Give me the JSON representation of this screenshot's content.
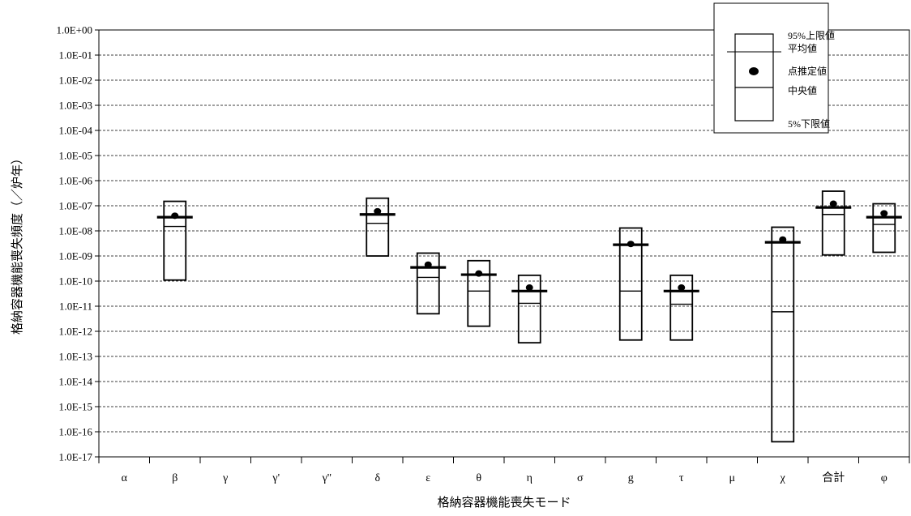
{
  "chart_data": {
    "type": "box",
    "xlabel": "格納容器機能喪失モード",
    "ylabel": "格納容器機能喪失頻度（／炉年）",
    "yscale": "log",
    "ylim": [
      1e-17,
      1
    ],
    "ytick_labels": [
      "1.0E+00",
      "1.0E-01",
      "1.0E-02",
      "1.0E-03",
      "1.0E-04",
      "1.0E-05",
      "1.0E-06",
      "1.0E-07",
      "1.0E-08",
      "1.0E-09",
      "1.0E-10",
      "1.0E-11",
      "1.0E-12",
      "1.0E-13",
      "1.0E-14",
      "1.0E-15",
      "1.0E-16",
      "1.0E-17"
    ],
    "grid": "horizontal-dashed",
    "legend_position": "top-right",
    "legend": {
      "upper": "95%上限値",
      "mean": "平均値",
      "point": "点推定値",
      "median": "中央値",
      "lower": "5%下限値"
    },
    "categories": [
      "α",
      "β",
      "γ",
      "γ'",
      "γ''",
      "δ",
      "ε",
      "θ",
      "η",
      "σ",
      "g",
      "τ",
      "μ",
      "χ",
      "合計",
      "φ"
    ],
    "boxes": [
      null,
      {
        "upper": 1.5e-07,
        "mean": 3.5e-08,
        "point": 4e-08,
        "median": 1.5e-08,
        "lower": 1.1e-10
      },
      null,
      null,
      null,
      {
        "upper": 2e-07,
        "mean": 4.5e-08,
        "point": 6e-08,
        "median": 2e-08,
        "lower": 1e-09
      },
      {
        "upper": 1.3e-09,
        "mean": 3.5e-10,
        "point": 4.5e-10,
        "median": 1.4e-10,
        "lower": 5e-12
      },
      {
        "upper": 6.5e-10,
        "mean": 1.8e-10,
        "point": 2e-10,
        "median": 4e-11,
        "lower": 1.6e-12
      },
      {
        "upper": 1.7e-10,
        "mean": 4e-11,
        "point": 5.5e-11,
        "median": 1.3e-11,
        "lower": 3.5e-13
      },
      null,
      {
        "upper": 1.3e-08,
        "mean": 2.8e-09,
        "point": 3e-09,
        "median": 4e-11,
        "lower": 4.5e-13
      },
      {
        "upper": 1.7e-10,
        "mean": 4e-11,
        "point": 5.5e-11,
        "median": 1.2e-11,
        "lower": 4.5e-13
      },
      null,
      {
        "upper": 1.4e-08,
        "mean": 3.5e-09,
        "point": 4.5e-09,
        "median": 6e-12,
        "lower": 4e-17
      },
      {
        "upper": 3.8e-07,
        "mean": 8.5e-08,
        "point": 1.2e-07,
        "median": 4.5e-08,
        "lower": 1.1e-09
      },
      {
        "upper": 1.2e-07,
        "mean": 3.5e-08,
        "point": 5e-08,
        "median": 1.8e-08,
        "lower": 1.4e-09
      }
    ]
  }
}
